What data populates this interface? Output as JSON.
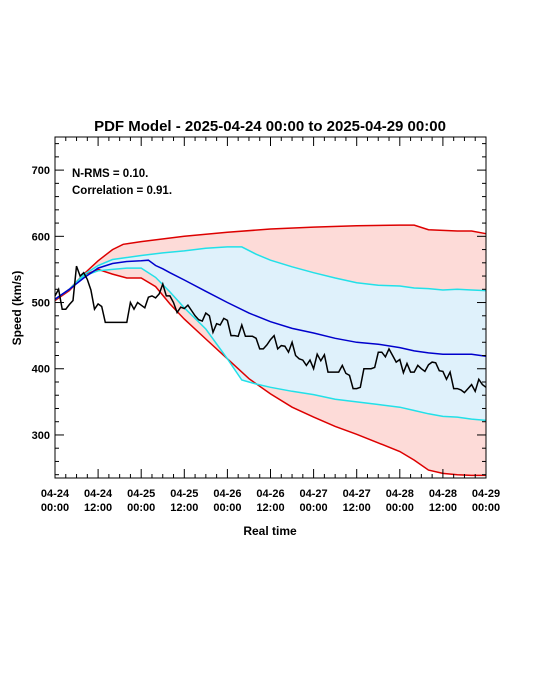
{
  "chart_data": {
    "type": "line",
    "title": "PDF Model - 2025-04-24 00:00 to 2025-04-29 00:00",
    "xlabel": "Real time",
    "ylabel": "Speed (km/s)",
    "xlim_hours": [
      0,
      120
    ],
    "ylim": [
      235,
      750
    ],
    "x_ticks": [
      {
        "hour": 0,
        "line1": "04-24",
        "line2": "00:00"
      },
      {
        "hour": 12,
        "line1": "04-24",
        "line2": "12:00"
      },
      {
        "hour": 24,
        "line1": "04-25",
        "line2": "00:00"
      },
      {
        "hour": 36,
        "line1": "04-25",
        "line2": "12:00"
      },
      {
        "hour": 48,
        "line1": "04-26",
        "line2": "00:00"
      },
      {
        "hour": 60,
        "line1": "04-26",
        "line2": "12:00"
      },
      {
        "hour": 72,
        "line1": "04-27",
        "line2": "00:00"
      },
      {
        "hour": 84,
        "line1": "04-27",
        "line2": "12:00"
      },
      {
        "hour": 96,
        "line1": "04-28",
        "line2": "00:00"
      },
      {
        "hour": 108,
        "line1": "04-28",
        "line2": "12:00"
      },
      {
        "hour": 120,
        "line1": "04-29",
        "line2": "00:00"
      }
    ],
    "y_ticks": [
      300,
      400,
      500,
      600,
      700
    ],
    "annotations": [
      "N-RMS = 0.10.",
      "Correlation = 0.91."
    ],
    "colors": {
      "outer_band_fill": "#fddbd8",
      "outer_band_line": "#dd0000",
      "inner_band_fill": "#dff1fb",
      "inner_band_line": "#22e0e8",
      "median": "#0000cc",
      "observed": "#000000"
    },
    "outer_upper": [
      [
        0,
        505
      ],
      [
        4,
        520
      ],
      [
        8,
        543
      ],
      [
        12,
        563
      ],
      [
        16,
        580
      ],
      [
        19,
        588
      ],
      [
        24,
        592
      ],
      [
        36,
        600
      ],
      [
        48,
        606
      ],
      [
        60,
        611
      ],
      [
        72,
        614
      ],
      [
        84,
        616
      ],
      [
        96,
        617
      ],
      [
        100,
        617
      ],
      [
        104,
        610
      ],
      [
        112,
        608
      ],
      [
        116,
        608
      ],
      [
        120,
        604
      ]
    ],
    "outer_lower": [
      [
        0,
        503
      ],
      [
        4,
        518
      ],
      [
        8,
        541
      ],
      [
        12,
        550
      ],
      [
        16,
        543
      ],
      [
        20,
        537
      ],
      [
        24,
        537
      ],
      [
        28,
        524
      ],
      [
        32,
        498
      ],
      [
        36,
        475
      ],
      [
        42,
        445
      ],
      [
        48,
        415
      ],
      [
        54,
        385
      ],
      [
        60,
        362
      ],
      [
        66,
        342
      ],
      [
        72,
        327
      ],
      [
        78,
        313
      ],
      [
        84,
        301
      ],
      [
        90,
        288
      ],
      [
        96,
        275
      ],
      [
        100,
        262
      ],
      [
        104,
        247
      ],
      [
        108,
        242
      ],
      [
        112,
        240
      ],
      [
        116,
        239
      ],
      [
        120,
        239
      ]
    ],
    "inner_upper": [
      [
        0,
        505
      ],
      [
        4,
        520
      ],
      [
        8,
        542
      ],
      [
        12,
        556
      ],
      [
        16,
        565
      ],
      [
        20,
        568
      ],
      [
        24,
        571
      ],
      [
        30,
        575
      ],
      [
        36,
        578
      ],
      [
        42,
        582
      ],
      [
        48,
        584
      ],
      [
        52,
        584
      ],
      [
        56,
        573
      ],
      [
        60,
        564
      ],
      [
        66,
        554
      ],
      [
        72,
        545
      ],
      [
        78,
        537
      ],
      [
        84,
        530
      ],
      [
        90,
        526
      ],
      [
        96,
        525
      ],
      [
        100,
        522
      ],
      [
        104,
        521
      ],
      [
        108,
        519
      ],
      [
        112,
        520
      ],
      [
        116,
        519
      ],
      [
        120,
        518
      ]
    ],
    "inner_lower": [
      [
        0,
        505
      ],
      [
        4,
        520
      ],
      [
        8,
        540
      ],
      [
        12,
        548
      ],
      [
        16,
        550
      ],
      [
        20,
        552
      ],
      [
        24,
        552
      ],
      [
        28,
        538
      ],
      [
        32,
        516
      ],
      [
        36,
        492
      ],
      [
        42,
        460
      ],
      [
        48,
        415
      ],
      [
        52,
        383
      ],
      [
        56,
        377
      ],
      [
        60,
        372
      ],
      [
        66,
        366
      ],
      [
        72,
        361
      ],
      [
        78,
        354
      ],
      [
        84,
        350
      ],
      [
        90,
        346
      ],
      [
        96,
        342
      ],
      [
        100,
        337
      ],
      [
        104,
        332
      ],
      [
        108,
        328
      ],
      [
        112,
        327
      ],
      [
        116,
        324
      ],
      [
        120,
        322
      ]
    ],
    "median": [
      [
        0,
        505
      ],
      [
        4,
        520
      ],
      [
        8,
        537
      ],
      [
        12,
        552
      ],
      [
        16,
        559
      ],
      [
        20,
        562
      ],
      [
        24,
        563
      ],
      [
        26,
        564
      ],
      [
        28,
        556
      ],
      [
        30,
        551
      ],
      [
        32,
        545
      ],
      [
        36,
        534
      ],
      [
        42,
        517
      ],
      [
        48,
        500
      ],
      [
        54,
        484
      ],
      [
        60,
        471
      ],
      [
        66,
        461
      ],
      [
        72,
        454
      ],
      [
        78,
        446
      ],
      [
        84,
        440
      ],
      [
        90,
        437
      ],
      [
        96,
        432
      ],
      [
        100,
        427
      ],
      [
        104,
        424
      ],
      [
        108,
        422
      ],
      [
        112,
        422
      ],
      [
        116,
        422
      ],
      [
        120,
        419
      ]
    ],
    "observed": [
      [
        0,
        510
      ],
      [
        1,
        520
      ],
      [
        2,
        490
      ],
      [
        3,
        490
      ],
      [
        4,
        497
      ],
      [
        5,
        503
      ],
      [
        6,
        555
      ],
      [
        7,
        540
      ],
      [
        8,
        545
      ],
      [
        9,
        535
      ],
      [
        10,
        519
      ],
      [
        11,
        490
      ],
      [
        12,
        498
      ],
      [
        13,
        494
      ],
      [
        14,
        470
      ],
      [
        16,
        470
      ],
      [
        18,
        470
      ],
      [
        20,
        470
      ],
      [
        21,
        500
      ],
      [
        22,
        490
      ],
      [
        23,
        500
      ],
      [
        24,
        496
      ],
      [
        25,
        492
      ],
      [
        26,
        508
      ],
      [
        27,
        510
      ],
      [
        28,
        507
      ],
      [
        29,
        513
      ],
      [
        30,
        528
      ],
      [
        31,
        510
      ],
      [
        32,
        510
      ],
      [
        33,
        500
      ],
      [
        34,
        485
      ],
      [
        35,
        493
      ],
      [
        36,
        491
      ],
      [
        37,
        496
      ],
      [
        38,
        488
      ],
      [
        39,
        480
      ],
      [
        40,
        474
      ],
      [
        41,
        472
      ],
      [
        42,
        484
      ],
      [
        43,
        480
      ],
      [
        44,
        455
      ],
      [
        45,
        468
      ],
      [
        46,
        466
      ],
      [
        47,
        476
      ],
      [
        48,
        473
      ],
      [
        49,
        450
      ],
      [
        50,
        450
      ],
      [
        51,
        449
      ],
      [
        52,
        466
      ],
      [
        53,
        449
      ],
      [
        54,
        449
      ],
      [
        55,
        449
      ],
      [
        56,
        446
      ],
      [
        57,
        430
      ],
      [
        58,
        430
      ],
      [
        59,
        436
      ],
      [
        60,
        444
      ],
      [
        61,
        450
      ],
      [
        62,
        430
      ],
      [
        63,
        435
      ],
      [
        64,
        434
      ],
      [
        65,
        425
      ],
      [
        66,
        440
      ],
      [
        67,
        420
      ],
      [
        68,
        415
      ],
      [
        69,
        413
      ],
      [
        70,
        405
      ],
      [
        71,
        413
      ],
      [
        72,
        400
      ],
      [
        73,
        422
      ],
      [
        74,
        412
      ],
      [
        75,
        421
      ],
      [
        76,
        395
      ],
      [
        77,
        395
      ],
      [
        78,
        395
      ],
      [
        79,
        395
      ],
      [
        80,
        405
      ],
      [
        81,
        393
      ],
      [
        82,
        390
      ],
      [
        83,
        370
      ],
      [
        84,
        370
      ],
      [
        85,
        372
      ],
      [
        86,
        400
      ],
      [
        87,
        400
      ],
      [
        88,
        400
      ],
      [
        89,
        402
      ],
      [
        90,
        425
      ],
      [
        91,
        425
      ],
      [
        92,
        418
      ],
      [
        93,
        430
      ],
      [
        94,
        420
      ],
      [
        95,
        410
      ],
      [
        96,
        414
      ],
      [
        97,
        394
      ],
      [
        98,
        408
      ],
      [
        99,
        395
      ],
      [
        100,
        395
      ],
      [
        101,
        405
      ],
      [
        102,
        400
      ],
      [
        103,
        396
      ],
      [
        104,
        406
      ],
      [
        105,
        410
      ],
      [
        106,
        409
      ],
      [
        107,
        397
      ],
      [
        108,
        396
      ],
      [
        109,
        384
      ],
      [
        110,
        395
      ],
      [
        111,
        370
      ],
      [
        112,
        370
      ],
      [
        113,
        368
      ],
      [
        114,
        364
      ],
      [
        115,
        370
      ],
      [
        116,
        376
      ],
      [
        117,
        366
      ],
      [
        118,
        384
      ],
      [
        119,
        376
      ],
      [
        120,
        372
      ]
    ]
  }
}
